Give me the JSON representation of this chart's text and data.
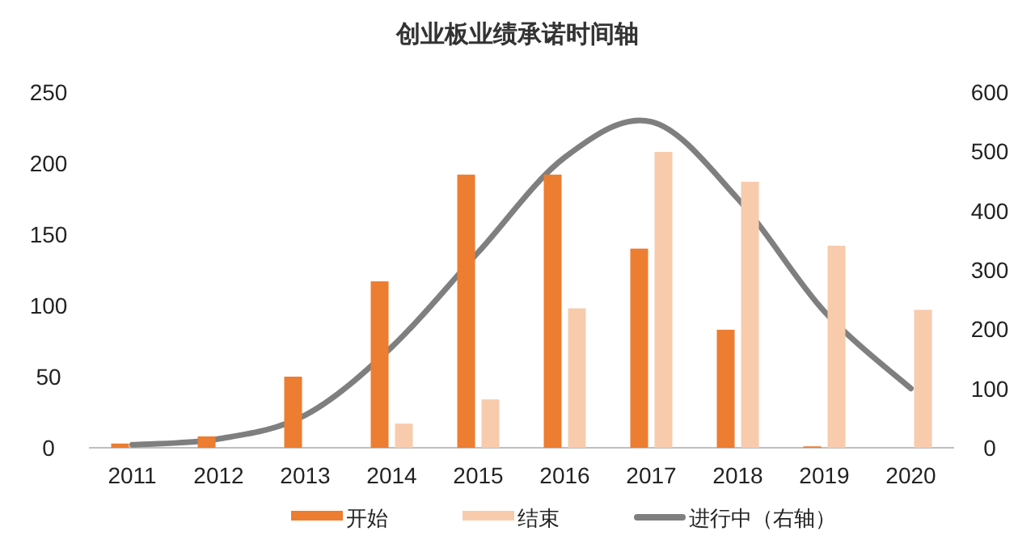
{
  "chart_data": {
    "type": "bar",
    "title": "创业板业绩承诺时间轴",
    "categories": [
      "2011",
      "2012",
      "2013",
      "2014",
      "2015",
      "2016",
      "2017",
      "2018",
      "2019",
      "2020"
    ],
    "series": [
      {
        "name": "开始",
        "color": "#ed7d31",
        "values": [
          3,
          8,
          50,
          117,
          192,
          192,
          140,
          83,
          1,
          0
        ]
      },
      {
        "name": "结束",
        "color": "#f8cbad",
        "values": [
          0,
          0,
          0,
          17,
          34,
          98,
          208,
          187,
          142,
          97
        ]
      },
      {
        "name": "进行中（右轴）",
        "type": "line",
        "axis": "y2",
        "color": "#7f7f7f",
        "values": [
          5,
          15,
          55,
          170,
          330,
          490,
          550,
          420,
          230,
          100
        ]
      }
    ],
    "ylim": [
      0,
      250
    ],
    "yticks": [
      0,
      50,
      100,
      150,
      200,
      250
    ],
    "y2lim": [
      0,
      600
    ],
    "y2ticks": [
      0,
      100,
      200,
      300,
      400,
      500,
      600
    ],
    "grid": false,
    "legend": "bottom"
  }
}
